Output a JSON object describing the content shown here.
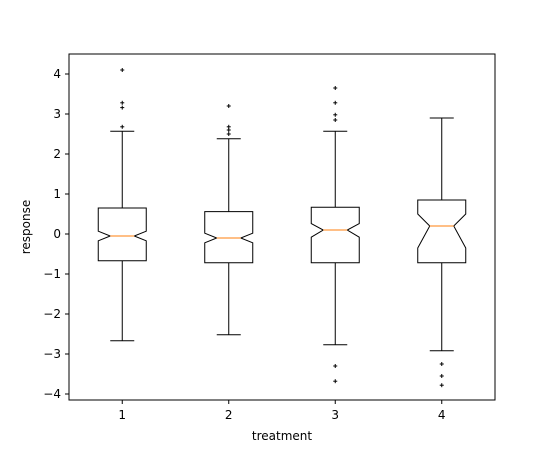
{
  "chart_data": {
    "type": "boxplot",
    "title": "",
    "xlabel": "treatment",
    "ylabel": "response",
    "categories": [
      "1",
      "2",
      "3",
      "4"
    ],
    "ylim": [
      -4.15,
      4.5
    ],
    "yticks": [
      {
        "value": -4,
        "label": "−4"
      },
      {
        "value": -3,
        "label": "−3"
      },
      {
        "value": -2,
        "label": "−2"
      },
      {
        "value": -1,
        "label": "−1"
      },
      {
        "value": 0,
        "label": "0"
      },
      {
        "value": 1,
        "label": "1"
      },
      {
        "value": 2,
        "label": "2"
      },
      {
        "value": 3,
        "label": "3"
      },
      {
        "value": 4,
        "label": "4"
      }
    ],
    "notched": true,
    "grid": false,
    "boxes": [
      {
        "category": "1",
        "whisker_low": -2.67,
        "q1": -0.67,
        "median": -0.05,
        "q3": 0.65,
        "whisker_high": 2.57,
        "notch_low": -0.17,
        "notch_high": 0.07,
        "fliers": [
          4.1,
          3.28,
          3.16,
          2.68
        ]
      },
      {
        "category": "2",
        "whisker_low": -2.52,
        "q1": -0.72,
        "median": -0.1,
        "q3": 0.56,
        "whisker_high": 2.38,
        "notch_low": -0.22,
        "notch_high": 0.02,
        "fliers": [
          3.2,
          2.68,
          2.6,
          2.5
        ]
      },
      {
        "category": "3",
        "whisker_low": -2.77,
        "q1": -0.72,
        "median": 0.1,
        "q3": 0.67,
        "whisker_high": 2.57,
        "notch_low": -0.08,
        "notch_high": 0.26,
        "fliers": [
          3.65,
          3.28,
          2.98,
          2.85,
          -3.3,
          -3.68
        ]
      },
      {
        "category": "4",
        "whisker_low": -2.92,
        "q1": -0.72,
        "median": 0.2,
        "q3": 0.85,
        "whisker_high": 2.9,
        "notch_low": -0.35,
        "notch_high": 0.5,
        "fliers": [
          -3.25,
          -3.55,
          -3.78
        ]
      }
    ],
    "colors": {
      "box": "#000000",
      "median": "#ff7f0e",
      "flier": "#000000",
      "axes": "#000000"
    }
  }
}
